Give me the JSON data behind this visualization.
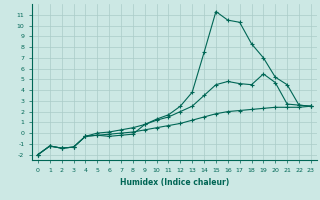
{
  "xlabel": "Humidex (Indice chaleur)",
  "background_color": "#cce8e4",
  "grid_color": "#aaccc8",
  "line_color": "#006655",
  "xlim": [
    -0.5,
    23.5
  ],
  "ylim": [
    -2.5,
    12.0
  ],
  "xticks": [
    0,
    1,
    2,
    3,
    4,
    5,
    6,
    7,
    8,
    9,
    10,
    11,
    12,
    13,
    14,
    15,
    16,
    17,
    18,
    19,
    20,
    21,
    22,
    23
  ],
  "yticks": [
    -2,
    -1,
    0,
    1,
    2,
    3,
    4,
    5,
    6,
    7,
    8,
    9,
    10,
    11
  ],
  "series1_x": [
    0,
    1,
    2,
    3,
    4,
    5,
    6,
    7,
    8,
    9,
    10,
    11,
    12,
    13,
    14,
    15,
    16,
    17,
    18,
    19,
    20,
    21,
    22,
    23
  ],
  "series1_y": [
    -2.0,
    -1.2,
    -1.4,
    -1.3,
    -0.3,
    -0.2,
    -0.3,
    -0.2,
    -0.1,
    0.8,
    1.3,
    1.7,
    2.5,
    3.8,
    7.5,
    11.3,
    10.5,
    10.3,
    8.3,
    7.0,
    5.2,
    4.5,
    2.6,
    2.5
  ],
  "series2_x": [
    0,
    1,
    2,
    3,
    4,
    5,
    6,
    7,
    8,
    9,
    10,
    11,
    12,
    13,
    14,
    15,
    16,
    17,
    18,
    19,
    20,
    21,
    22,
    23
  ],
  "series2_y": [
    -2.0,
    -1.2,
    -1.4,
    -1.3,
    -0.3,
    0.0,
    0.1,
    0.3,
    0.5,
    0.8,
    1.2,
    1.5,
    2.0,
    2.5,
    3.5,
    4.5,
    4.8,
    4.6,
    4.5,
    5.5,
    4.7,
    2.7,
    2.6,
    2.5
  ],
  "series3_x": [
    0,
    1,
    2,
    3,
    4,
    5,
    6,
    7,
    8,
    9,
    10,
    11,
    12,
    13,
    14,
    15,
    16,
    17,
    18,
    19,
    20,
    21,
    22,
    23
  ],
  "series3_y": [
    -2.0,
    -1.2,
    -1.4,
    -1.3,
    -0.3,
    -0.2,
    -0.1,
    0.0,
    0.1,
    0.3,
    0.5,
    0.7,
    0.9,
    1.2,
    1.5,
    1.8,
    2.0,
    2.1,
    2.2,
    2.3,
    2.4,
    2.4,
    2.4,
    2.5
  ]
}
